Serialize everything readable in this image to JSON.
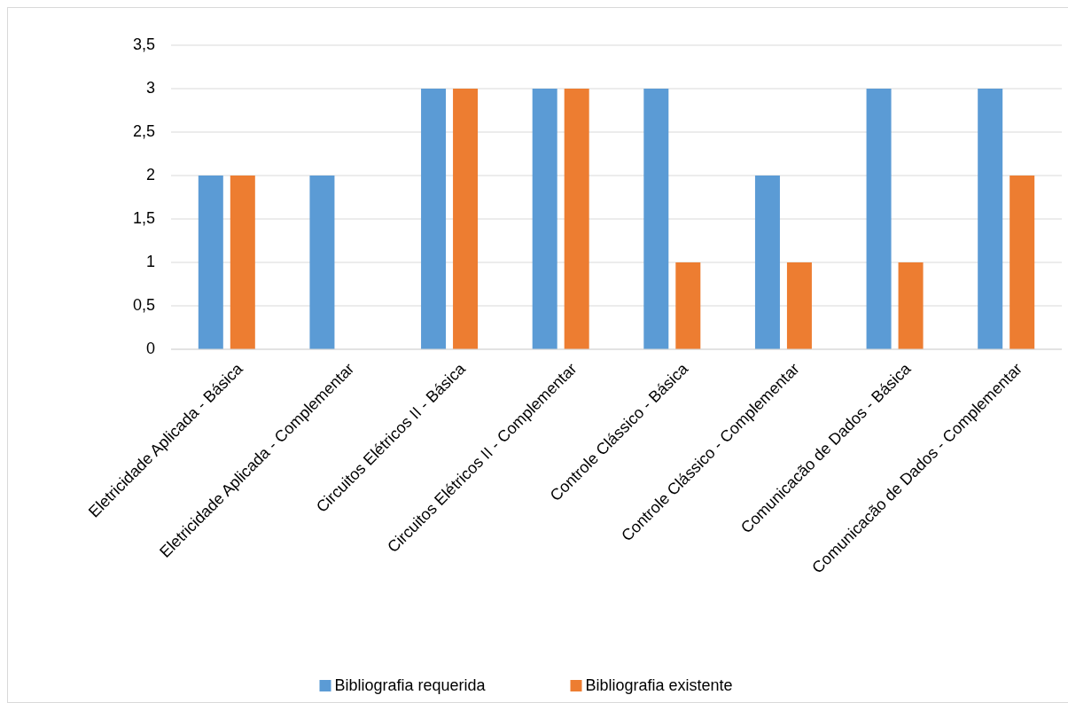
{
  "chart_data": {
    "type": "bar",
    "categories": [
      "Eletricidade Aplicada - Básica",
      "Eletricidade Aplicada - Complementar",
      "Circuitos Elétricos II - Básica",
      "Circuitos Elétricos II - Complementar",
      "Controle Clássico - Básica",
      "Controle Clássico - Complementar",
      "Comunicacão de Dados - Básica",
      "Comunicacão de Dados - Complementar"
    ],
    "series": [
      {
        "name": "Bibliografia requerida",
        "color": "#5b9bd5",
        "values": [
          2,
          2,
          3,
          3,
          3,
          2,
          3,
          3
        ]
      },
      {
        "name": "Bibliografia existente",
        "color": "#ed7d31",
        "values": [
          2,
          0,
          3,
          3,
          1,
          1,
          1,
          2
        ]
      }
    ],
    "ylim": [
      0,
      3.5
    ],
    "yticks": [
      0,
      {
        "value": 0.5,
        "label": "0,5"
      },
      1,
      {
        "value": 1.5,
        "label": "1,5"
      },
      2,
      {
        "value": 2.5,
        "label": "2,5"
      },
      3,
      {
        "value": 3.5,
        "label": "3,5"
      }
    ],
    "grid": "y",
    "legend": "bottom"
  }
}
